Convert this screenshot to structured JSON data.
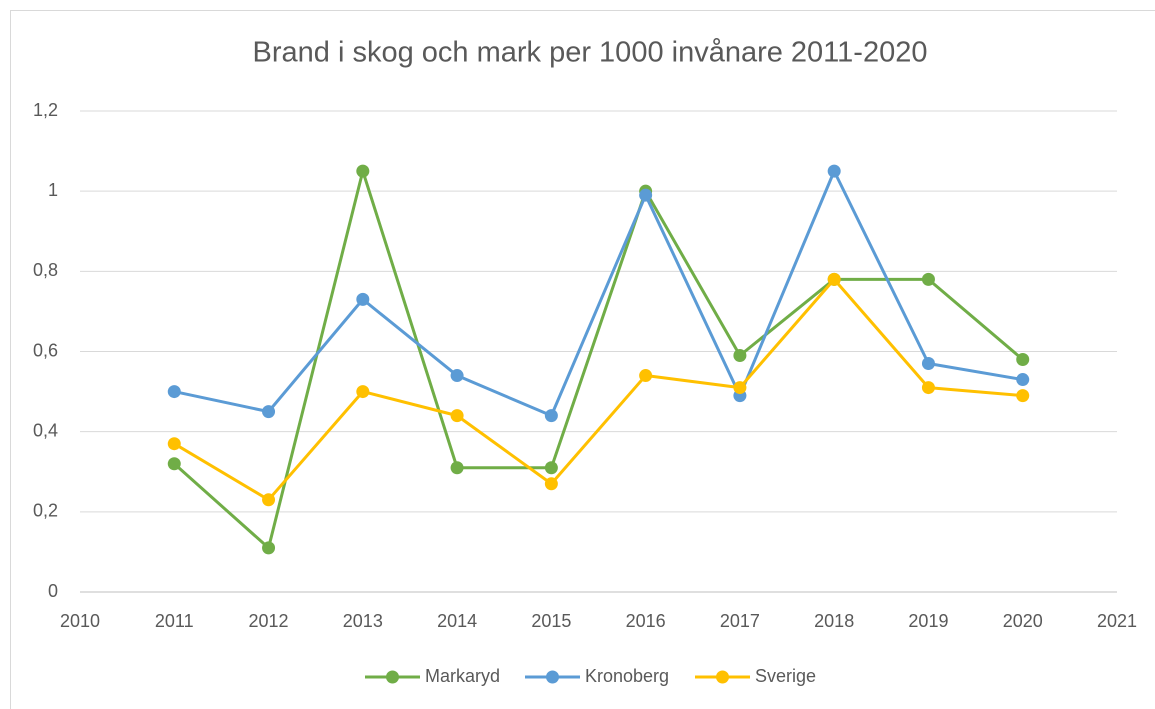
{
  "chart_data": {
    "type": "line",
    "title": "Brand i skog och mark per 1000 invånare 2011-2020",
    "x": [
      2011,
      2012,
      2013,
      2014,
      2015,
      2016,
      2017,
      2018,
      2019,
      2020
    ],
    "series": [
      {
        "name": "Markaryd",
        "color": "#70ad47",
        "values": [
          0.32,
          0.11,
          1.05,
          0.31,
          0.31,
          1.0,
          0.59,
          0.78,
          0.78,
          0.58
        ]
      },
      {
        "name": "Kronoberg",
        "color": "#5b9bd5",
        "values": [
          0.5,
          0.45,
          0.73,
          0.54,
          0.44,
          0.99,
          0.49,
          1.05,
          0.57,
          0.53
        ]
      },
      {
        "name": "Sverige",
        "color": "#ffc000",
        "values": [
          0.37,
          0.23,
          0.5,
          0.44,
          0.27,
          0.54,
          0.51,
          0.78,
          0.51,
          0.49
        ]
      }
    ],
    "xlim": [
      2010,
      2021
    ],
    "xticks": [
      2010,
      2011,
      2012,
      2013,
      2014,
      2015,
      2016,
      2017,
      2018,
      2019,
      2020,
      2021
    ],
    "ylim": [
      0,
      1.2
    ],
    "yticks": [
      0,
      {
        "value": 0.2,
        "label": "0,2"
      },
      {
        "value": 0.4,
        "label": "0,4"
      },
      {
        "value": 0.6,
        "label": "0,6"
      },
      {
        "value": 0.8,
        "label": "0,8"
      },
      1,
      {
        "value": 1.2,
        "label": "1,2"
      }
    ],
    "grid": true,
    "legend": "bottom"
  }
}
